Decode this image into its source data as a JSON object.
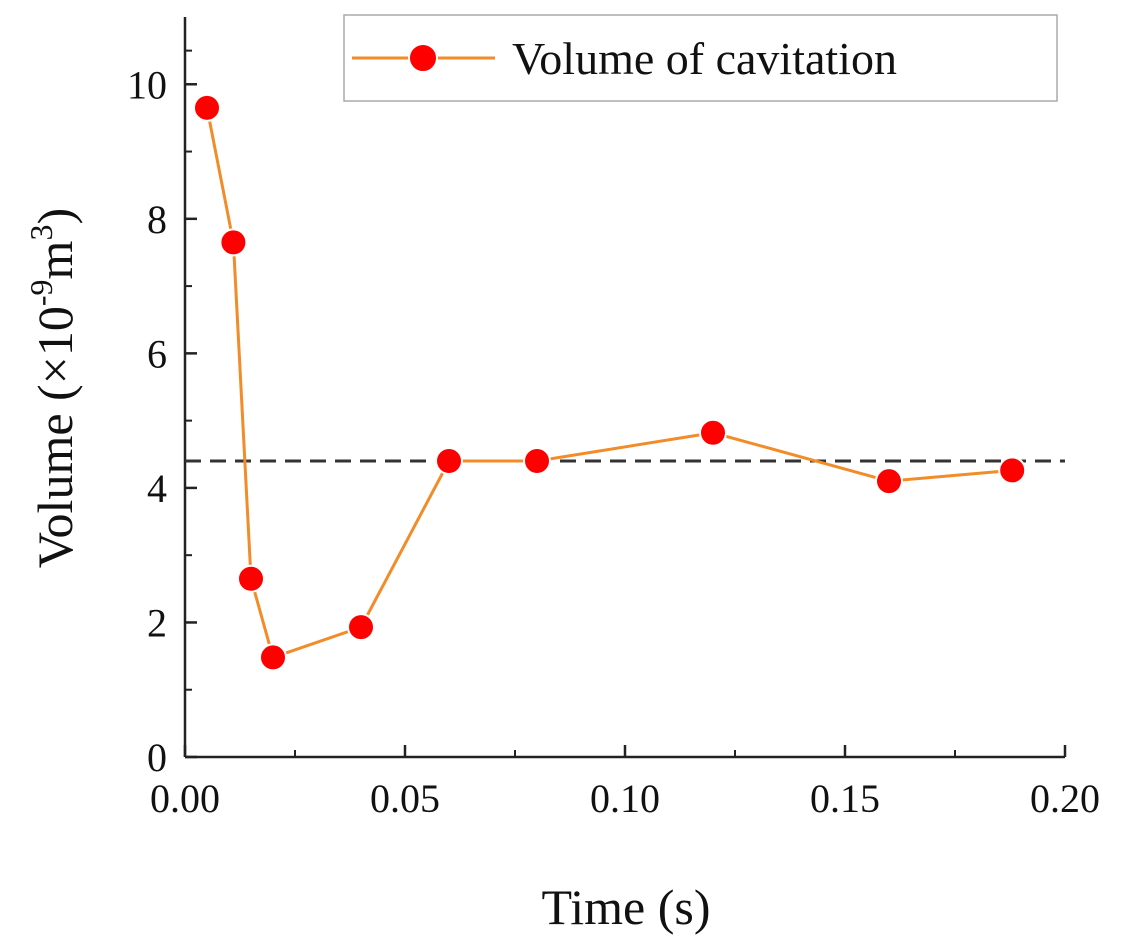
{
  "chart_data": {
    "type": "line",
    "title": "",
    "xlabel": "Time (s)",
    "ylabel": "Volume (×10",
    "ylabel_exp1": "-9",
    "ylabel_mid": "m",
    "ylabel_exp2": "3",
    "ylabel_end": ")",
    "xlim": [
      0,
      0.2
    ],
    "ylim": [
      0,
      11
    ],
    "x_ticks": [
      0,
      0.05,
      0.1,
      0.15,
      0.2
    ],
    "x_tick_labels": [
      "0.00",
      "0.05",
      "0.10",
      "0.15",
      "0.20"
    ],
    "y_ticks": [
      0,
      2,
      4,
      6,
      8,
      10
    ],
    "y_tick_labels": [
      "0",
      "2",
      "4",
      "6",
      "8",
      "10"
    ],
    "grid": false,
    "legend_position": "top-right",
    "series": [
      {
        "name": "Volume of cavitation",
        "line_color": "#f28c28",
        "marker_color": "#ff0000",
        "x": [
          0.005,
          0.011,
          0.015,
          0.02,
          0.04,
          0.06,
          0.08,
          0.12,
          0.16,
          0.188
        ],
        "y": [
          9.65,
          7.65,
          2.65,
          1.48,
          1.93,
          4.4,
          4.4,
          4.82,
          4.1,
          4.26
        ]
      }
    ],
    "reference_line": {
      "type": "horizontal",
      "y": 4.4,
      "style": "dashed",
      "color": "#333333"
    }
  }
}
